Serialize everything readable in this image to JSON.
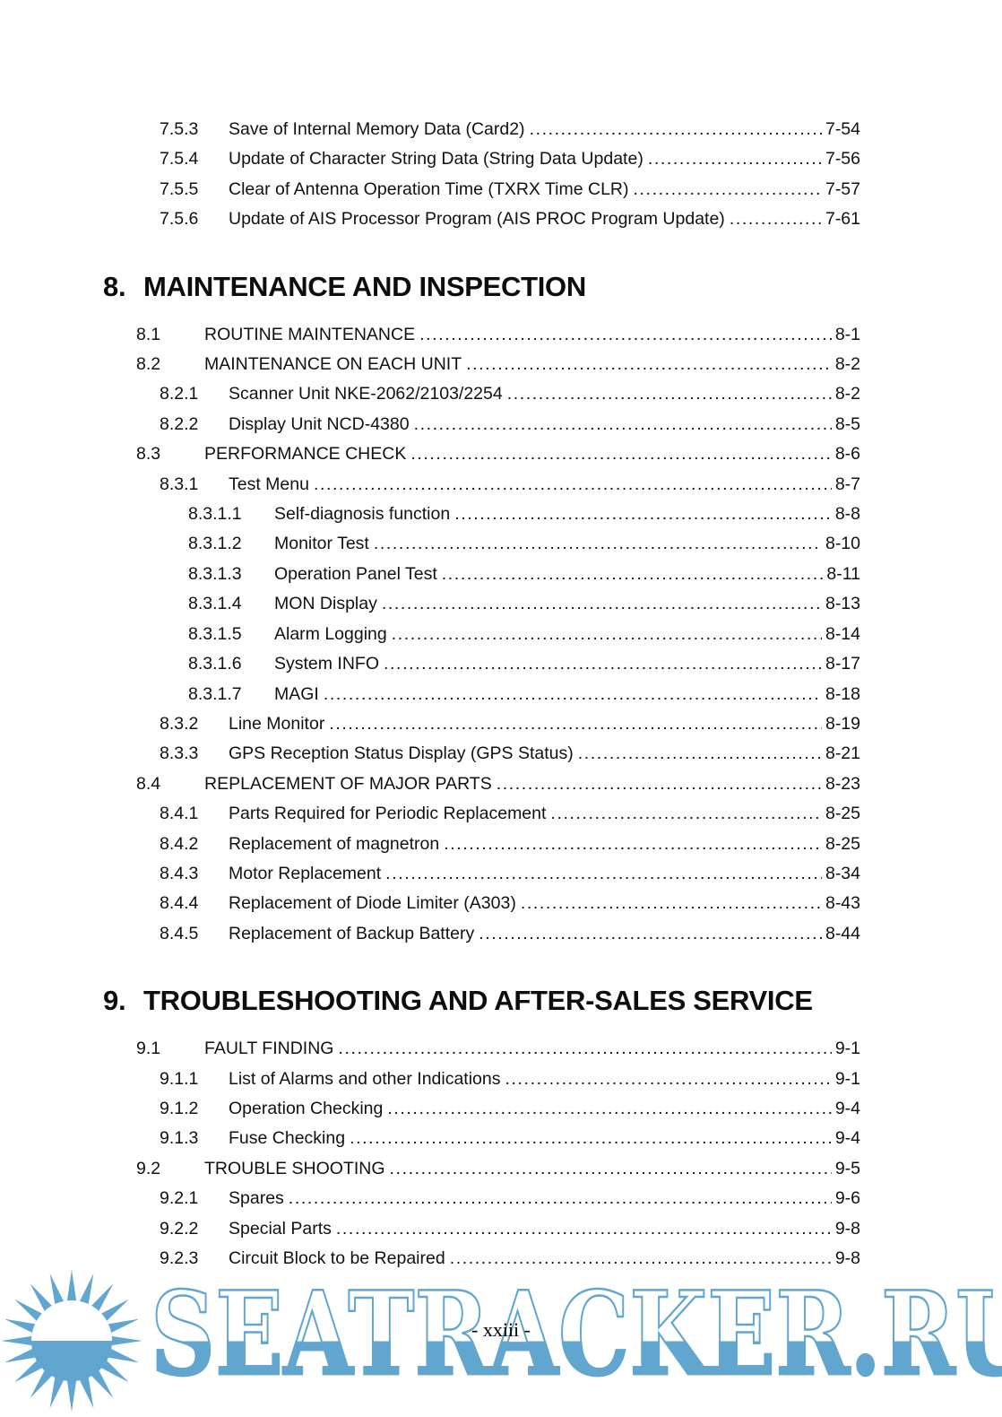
{
  "page": {
    "footer_text": "- xxiii -"
  },
  "watermark": {
    "text": "SEATRACKER.RU",
    "color": "#61a6cf",
    "icon": "sun-icon"
  },
  "toc": {
    "leading_entries": [
      {
        "number": "7.5.3",
        "title": "Save of Internal Memory Data (Card2)",
        "page": "7-54",
        "level": 2
      },
      {
        "number": "7.5.4",
        "title": "Update of Character String Data (String Data Update)",
        "page": "7-56",
        "level": 2
      },
      {
        "number": "7.5.5",
        "title": "Clear of Antenna Operation Time (TXRX Time CLR)",
        "page": "7-57",
        "level": 2
      },
      {
        "number": "7.5.6",
        "title": "Update of AIS Processor Program (AIS PROC Program Update)",
        "page": "7-61",
        "level": 2
      }
    ],
    "chapters": [
      {
        "number": "8.",
        "title": "MAINTENANCE AND INSPECTION",
        "entries": [
          {
            "number": "8.1",
            "title": "ROUTINE MAINTENANCE",
            "page": "8-1",
            "level": 1
          },
          {
            "number": "8.2",
            "title": "MAINTENANCE ON EACH UNIT",
            "page": "8-2",
            "level": 1
          },
          {
            "number": "8.2.1",
            "title": "Scanner Unit NKE-2062/2103/2254",
            "page": "8-2",
            "level": 2
          },
          {
            "number": "8.2.2",
            "title": "Display Unit NCD-4380",
            "page": "8-5",
            "level": 2
          },
          {
            "number": "8.3",
            "title": "PERFORMANCE CHECK",
            "page": "8-6",
            "level": 1
          },
          {
            "number": "8.3.1",
            "title": "Test Menu",
            "page": "8-7",
            "level": 2
          },
          {
            "number": "8.3.1.1",
            "title": "Self-diagnosis function",
            "page": "8-8",
            "level": 3
          },
          {
            "number": "8.3.1.2",
            "title": "Monitor Test",
            "page": "8-10",
            "level": 3
          },
          {
            "number": "8.3.1.3",
            "title": "Operation Panel Test",
            "page": "8-11",
            "level": 3
          },
          {
            "number": "8.3.1.4",
            "title": "MON Display",
            "page": "8-13",
            "level": 3
          },
          {
            "number": "8.3.1.5",
            "title": "Alarm Logging",
            "page": "8-14",
            "level": 3
          },
          {
            "number": "8.3.1.6",
            "title": "System INFO",
            "page": "8-17",
            "level": 3
          },
          {
            "number": "8.3.1.7",
            "title": "MAGI",
            "page": "8-18",
            "level": 3
          },
          {
            "number": "8.3.2",
            "title": "Line Monitor",
            "page": "8-19",
            "level": 2
          },
          {
            "number": "8.3.3",
            "title": "GPS Reception Status Display (GPS Status)",
            "page": "8-21",
            "level": 2
          },
          {
            "number": "8.4",
            "title": "REPLACEMENT OF MAJOR PARTS",
            "page": "8-23",
            "level": 1
          },
          {
            "number": "8.4.1",
            "title": "Parts Required for Periodic Replacement",
            "page": "8-25",
            "level": 2
          },
          {
            "number": "8.4.2",
            "title": "Replacement of magnetron",
            "page": "8-25",
            "level": 2
          },
          {
            "number": "8.4.3",
            "title": "Motor Replacement",
            "page": "8-34",
            "level": 2
          },
          {
            "number": "8.4.4",
            "title": "Replacement of Diode Limiter (A303)",
            "page": "8-43",
            "level": 2
          },
          {
            "number": "8.4.5",
            "title": "Replacement of Backup Battery",
            "page": "8-44",
            "level": 2
          }
        ]
      },
      {
        "number": "9.",
        "title": "TROUBLESHOOTING AND AFTER-SALES SERVICE",
        "entries": [
          {
            "number": "9.1",
            "title": "FAULT FINDING",
            "page": "9-1",
            "level": 1
          },
          {
            "number": "9.1.1",
            "title": "List of Alarms and other Indications",
            "page": "9-1",
            "level": 2
          },
          {
            "number": "9.1.2",
            "title": "Operation Checking",
            "page": "9-4",
            "level": 2
          },
          {
            "number": "9.1.3",
            "title": "Fuse Checking",
            "page": "9-4",
            "level": 2
          },
          {
            "number": "9.2",
            "title": "TROUBLE SHOOTING",
            "page": "9-5",
            "level": 1
          },
          {
            "number": "9.2.1",
            "title": "Spares",
            "page": "9-6",
            "level": 2
          },
          {
            "number": "9.2.2",
            "title": "Special Parts",
            "page": "9-8",
            "level": 2
          },
          {
            "number": "9.2.3",
            "title": "Circuit Block to be Repaired",
            "page": "9-8",
            "level": 2
          }
        ]
      }
    ]
  }
}
